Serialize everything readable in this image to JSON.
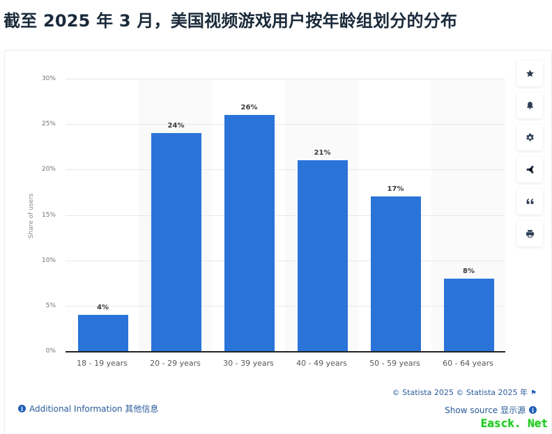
{
  "header": {
    "title": "截至 2025 年 3 月，美国视频游戏用户按年龄组划分的分布"
  },
  "chart_data": {
    "type": "bar",
    "title": "截至 2025 年 3 月，美国视频游戏用户按年龄组划分的分布",
    "categories": [
      "18 - 19 years",
      "20 - 29 years",
      "30 - 39 years",
      "40 - 49 years",
      "50 - 59 years",
      "60 - 64 years"
    ],
    "values": [
      4,
      24,
      26,
      21,
      17,
      8
    ],
    "value_labels": [
      "4%",
      "24%",
      "26%",
      "21%",
      "17%",
      "8%"
    ],
    "xlabel": "",
    "ylabel": "Share of users",
    "ylim": [
      0,
      30
    ],
    "yticks": [
      "0%",
      "5%",
      "10%",
      "15%",
      "20%",
      "25%",
      "30%"
    ],
    "grid": true,
    "legend": null,
    "bar_color": "#2a74d9"
  },
  "toolbar": {
    "items": [
      {
        "name": "favorite",
        "icon": "star-icon"
      },
      {
        "name": "notifications",
        "icon": "bell-icon"
      },
      {
        "name": "settings",
        "icon": "gear-icon"
      },
      {
        "name": "share",
        "icon": "share-icon"
      },
      {
        "name": "cite",
        "icon": "quote-icon"
      },
      {
        "name": "print",
        "icon": "printer-icon"
      }
    ]
  },
  "footer": {
    "copyright": "© Statista 2025  © Statista 2025 年",
    "show_source": "Show source  显示源",
    "additional_info": "Additional Information  其他信息",
    "info_glyph": "i"
  },
  "watermark": "Easck. Net",
  "colors": {
    "bar": "#2a74d9",
    "link": "#2a5a98",
    "title": "#1a2a3a"
  }
}
